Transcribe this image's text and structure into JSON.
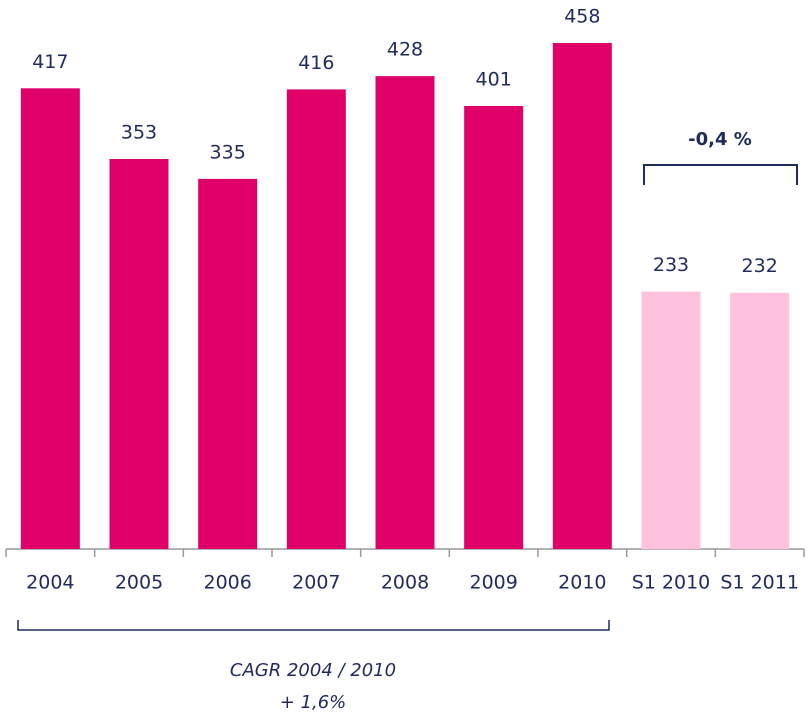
{
  "chart_data": {
    "type": "bar",
    "categories": [
      "2004",
      "2005",
      "2006",
      "2007",
      "2008",
      "2009",
      "2010",
      "S1 2010",
      "S1 2011"
    ],
    "values": [
      417,
      353,
      335,
      416,
      428,
      401,
      458,
      233,
      232
    ],
    "colors": [
      "#e0006a",
      "#e0006a",
      "#e0006a",
      "#e0006a",
      "#e0006a",
      "#e0006a",
      "#e0006a",
      "#ffc2de",
      "#ffc2de"
    ],
    "annotations": {
      "change": "-0,4 %",
      "cagr_title": "CAGR 2004 / 2010",
      "cagr_value": "+ 1,6%"
    }
  }
}
